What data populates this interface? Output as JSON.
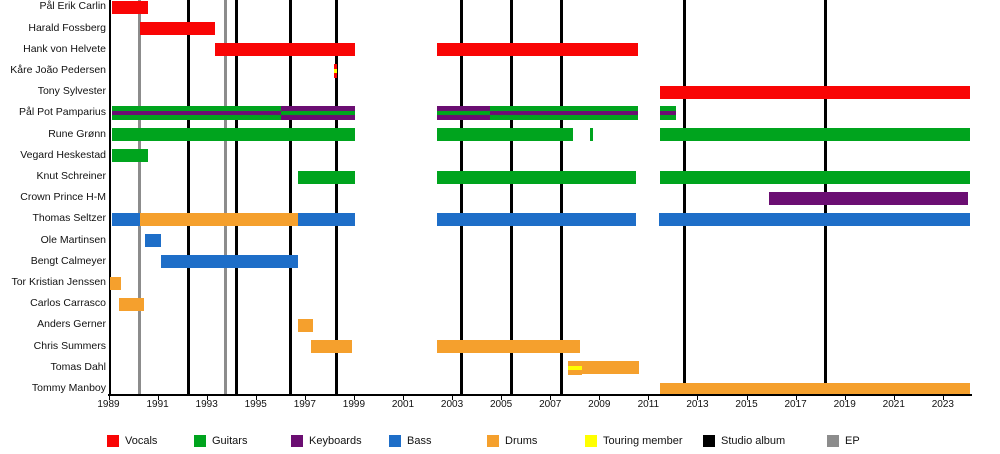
{
  "chart_data": {
    "type": "bar",
    "subtype": "timeline-gantt",
    "title": "",
    "x_axis": {
      "min": 1989,
      "max": 2024.2,
      "tick_years": [
        1989,
        1991,
        1993,
        1995,
        1997,
        1999,
        2001,
        2003,
        2005,
        2007,
        2009,
        2011,
        2013,
        2015,
        2017,
        2019,
        2021,
        2023
      ]
    },
    "colors": {
      "vocals": "#f90505",
      "guitars": "#00a41e",
      "keyboards": "#6b0e72",
      "bass": "#1e6ec8",
      "drums": "#f5a02d",
      "touring": "#ffff00",
      "album": "#000000",
      "ep": "#8c8c8c"
    },
    "events": {
      "studio_albums": [
        1992.24,
        1994.2,
        1996.4,
        1998.31,
        2003.4,
        2005.44,
        2007.48,
        2012.49,
        2018.2
      ],
      "eps": [
        1990.28,
        1993.75
      ]
    },
    "members": [
      {
        "name": "Pål Erik Carlin",
        "segments": [
          {
            "start": 1989.14,
            "end": 1990.6,
            "roles": [
              "vocals"
            ]
          }
        ]
      },
      {
        "name": "Harald Fossberg",
        "segments": [
          {
            "start": 1990.28,
            "end": 1993.34,
            "roles": [
              "vocals"
            ]
          }
        ]
      },
      {
        "name": "Hank von Helvete",
        "segments": [
          {
            "start": 1993.34,
            "end": 1999.05,
            "roles": [
              "vocals"
            ]
          },
          {
            "start": 2002.39,
            "end": 2010.58,
            "roles": [
              "vocals"
            ]
          }
        ]
      },
      {
        "name": "Kåre João Pedersen",
        "segments": [
          {
            "start": 1998.17,
            "end": 1998.33,
            "roles": [
              "vocals",
              "touring",
              "vocals"
            ]
          }
        ]
      },
      {
        "name": "Tony Sylvester",
        "segments": [
          {
            "start": 2011.47,
            "end": 2024.1,
            "roles": [
              "vocals"
            ]
          }
        ]
      },
      {
        "name": "Pål Pot Pamparius",
        "segments": [
          {
            "start": 1989.14,
            "end": 1996.03,
            "roles": [
              "guitars",
              "keyboards",
              "guitars"
            ]
          },
          {
            "start": 1996.03,
            "end": 1999.05,
            "roles": [
              "keyboards",
              "guitars",
              "keyboards"
            ]
          },
          {
            "start": 2002.39,
            "end": 2004.55,
            "roles": [
              "keyboards",
              "guitars",
              "keyboards"
            ]
          },
          {
            "start": 2004.55,
            "end": 2010.58,
            "roles": [
              "guitars",
              "keyboards",
              "guitars"
            ]
          },
          {
            "start": 2011.47,
            "end": 2012.13,
            "roles": [
              "guitars",
              "keyboards",
              "guitars"
            ]
          }
        ]
      },
      {
        "name": "Rune Grønn",
        "segments": [
          {
            "start": 1989.14,
            "end": 1999.05,
            "roles": [
              "guitars"
            ]
          },
          {
            "start": 2002.39,
            "end": 2007.93,
            "roles": [
              "guitars"
            ]
          },
          {
            "start": 2008.62,
            "end": 2008.75,
            "roles": [
              "guitars"
            ]
          },
          {
            "start": 2011.47,
            "end": 2024.1,
            "roles": [
              "guitars"
            ]
          }
        ]
      },
      {
        "name": "Vegard Heskestad",
        "segments": [
          {
            "start": 1989.14,
            "end": 1990.6,
            "roles": [
              "guitars"
            ]
          }
        ]
      },
      {
        "name": "Knut Schreiner",
        "segments": [
          {
            "start": 1996.72,
            "end": 1999.05,
            "roles": [
              "guitars"
            ]
          },
          {
            "start": 2002.39,
            "end": 2010.5,
            "roles": [
              "guitars"
            ]
          },
          {
            "start": 2011.47,
            "end": 2024.1,
            "roles": [
              "guitars"
            ]
          }
        ]
      },
      {
        "name": "Crown Prince H-M",
        "segments": [
          {
            "start": 2015.92,
            "end": 2024.02,
            "roles": [
              "keyboards"
            ]
          }
        ]
      },
      {
        "name": "Thomas Seltzer",
        "segments": [
          {
            "start": 1989.14,
            "end": 1990.28,
            "roles": [
              "bass"
            ]
          },
          {
            "start": 1990.28,
            "end": 1996.72,
            "roles": [
              "drums"
            ]
          },
          {
            "start": 1996.72,
            "end": 1999.05,
            "roles": [
              "bass"
            ]
          },
          {
            "start": 2002.39,
            "end": 2010.5,
            "roles": [
              "bass"
            ]
          },
          {
            "start": 2011.43,
            "end": 2024.1,
            "roles": [
              "bass"
            ]
          }
        ]
      },
      {
        "name": "Ole Martinsen",
        "segments": [
          {
            "start": 1990.5,
            "end": 1991.15,
            "roles": [
              "bass"
            ]
          }
        ]
      },
      {
        "name": "Bengt Calmeyer",
        "segments": [
          {
            "start": 1991.15,
            "end": 1996.72,
            "roles": [
              "bass"
            ]
          }
        ]
      },
      {
        "name": "Tor Kristian Jenssen",
        "segments": [
          {
            "start": 1989.08,
            "end": 1989.5,
            "roles": [
              "drums"
            ]
          }
        ]
      },
      {
        "name": "Carlos Carrasco",
        "segments": [
          {
            "start": 1989.43,
            "end": 1990.45,
            "roles": [
              "drums"
            ]
          }
        ]
      },
      {
        "name": "Anders Gerner",
        "segments": [
          {
            "start": 1996.72,
            "end": 1997.35,
            "roles": [
              "drums"
            ]
          }
        ]
      },
      {
        "name": "Chris Summers",
        "segments": [
          {
            "start": 1997.27,
            "end": 1998.92,
            "roles": [
              "drums"
            ]
          },
          {
            "start": 2002.39,
            "end": 2008.21,
            "roles": [
              "drums"
            ]
          }
        ]
      },
      {
        "name": "Tomas Dahl",
        "segments": [
          {
            "start": 2007.72,
            "end": 2008.3,
            "roles": [
              "drums",
              "touring",
              "drums"
            ]
          },
          {
            "start": 2008.3,
            "end": 2010.62,
            "roles": [
              "drums"
            ]
          }
        ]
      },
      {
        "name": "Tommy Manboy",
        "segments": [
          {
            "start": 2011.47,
            "end": 2024.1,
            "roles": [
              "drums"
            ]
          }
        ]
      }
    ],
    "legend": [
      {
        "label": "Vocals",
        "key": "vocals"
      },
      {
        "label": "Guitars",
        "key": "guitars"
      },
      {
        "label": "Keyboards",
        "key": "keyboards"
      },
      {
        "label": "Bass",
        "key": "bass"
      },
      {
        "label": "Drums",
        "key": "drums"
      },
      {
        "label": "Touring member",
        "key": "touring"
      },
      {
        "label": "Studio album",
        "key": "album"
      },
      {
        "label": "EP",
        "key": "ep"
      }
    ]
  }
}
